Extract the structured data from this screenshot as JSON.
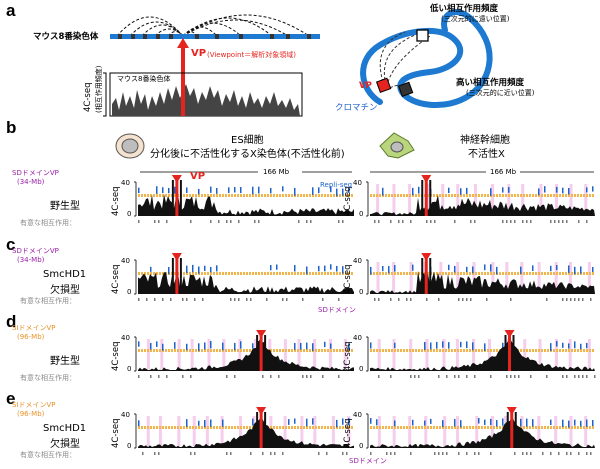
{
  "panels": {
    "a": "a",
    "b": "b",
    "c": "c",
    "d": "d",
    "e": "e"
  },
  "panel_a": {
    "chrom_label": "マウス8番染色体",
    "vp_text": "VP",
    "vp_desc": "(Viewpoint＝解析対象領域)",
    "inset_title": "マウス8番染色体",
    "yaxis_main": "4C-seq",
    "yaxis_sub": "(相互作用頻度)",
    "low_freq": "低い相互作用頻度",
    "low_freq_sub": "(三次元的に遠い位置)",
    "high_freq": "高い相互作用頻度",
    "high_freq_sub": "(三次元的に近い位置)",
    "vp_small": "VP",
    "chromatin": "クロマチン"
  },
  "headers": {
    "es_title": "ES細胞",
    "es_sub": "分化後に不活性化するX染色体(不活性化前)",
    "nsc_title": "神経幹細胞",
    "nsc_sub": "不活性X",
    "span_left": "166 Mb",
    "span_right": "166 Mb"
  },
  "rows": [
    {
      "id": "b",
      "vp_type": "SDドメインVP",
      "vp_mb": "(34-Mb)",
      "genotype1": "野生型",
      "genotype2": "",
      "vp_color": "purple"
    },
    {
      "id": "c",
      "vp_type": "SDドメインVP",
      "vp_mb": "(34-Mb)",
      "genotype1": "SmcHD1",
      "genotype2": "欠損型",
      "vp_color": "purple"
    },
    {
      "id": "d",
      "vp_type": "SIドメインVP",
      "vp_mb": "(96-Mb)",
      "genotype1": "野生型",
      "genotype2": "",
      "vp_color": "orange"
    },
    {
      "id": "e",
      "vp_type": "SIドメインVP",
      "vp_mb": "(96-Mb)",
      "genotype1": "SmcHD1",
      "genotype2": "欠損型",
      "vp_color": "orange"
    }
  ],
  "plot_labels": {
    "yaxis": "4C-seq",
    "ymax": "40",
    "ymin": "0",
    "vp": "VP",
    "repli": "Repli-seq",
    "sig_interact": "有意な相互作用：",
    "sd_domain": "SDドメイン"
  },
  "colors": {
    "red": "#e5241f",
    "blue": "#1d63c9",
    "orange": "#f2b54b",
    "purple": "#9b1fa8",
    "signal": "#111111",
    "pink": "#f1b8e6"
  }
}
